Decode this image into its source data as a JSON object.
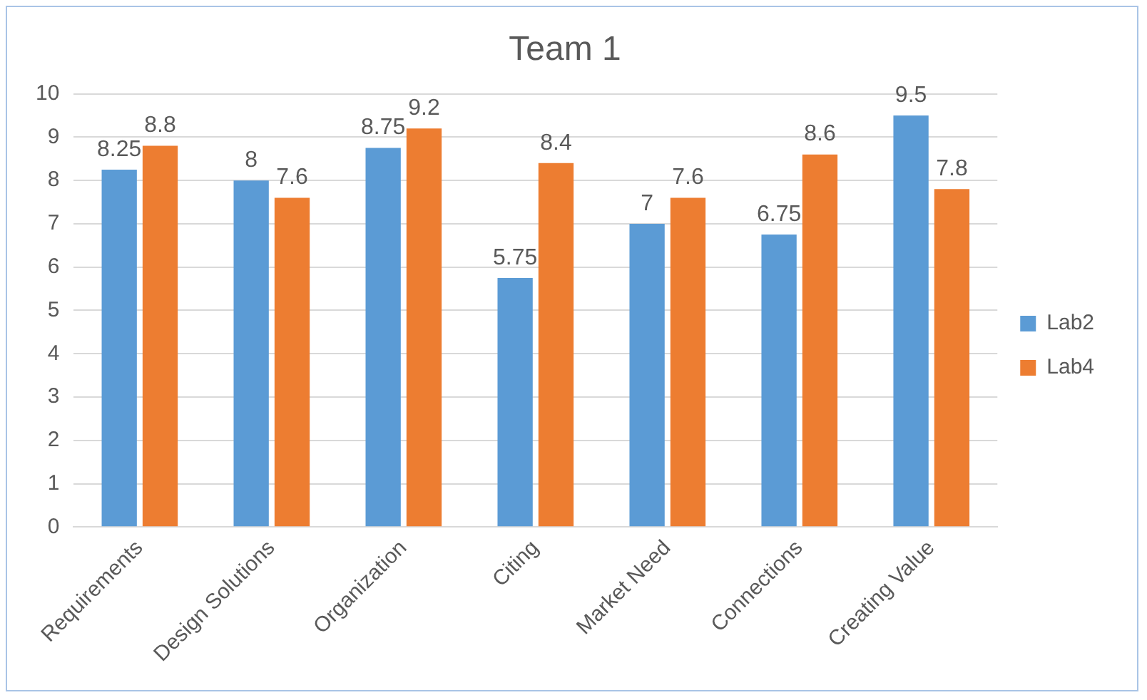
{
  "chart_data": {
    "type": "bar",
    "title": "Team 1",
    "categories": [
      "Requirements",
      "Design Solutions",
      "Organization",
      "Citing",
      "Market Need",
      "Connections",
      "Creating Value"
    ],
    "series": [
      {
        "name": "Lab2",
        "color": "#5b9bd5",
        "values": [
          8.25,
          8,
          8.75,
          5.75,
          7,
          6.75,
          9.5
        ]
      },
      {
        "name": "Lab4",
        "color": "#ed7d31",
        "values": [
          8.8,
          7.6,
          9.2,
          8.4,
          7.6,
          8.6,
          7.8
        ]
      }
    ],
    "ylim": [
      0,
      10
    ],
    "yticks": [
      0,
      1,
      2,
      3,
      4,
      5,
      6,
      7,
      8,
      9,
      10
    ],
    "grid": "y",
    "legend": "right",
    "data_labels": true
  }
}
